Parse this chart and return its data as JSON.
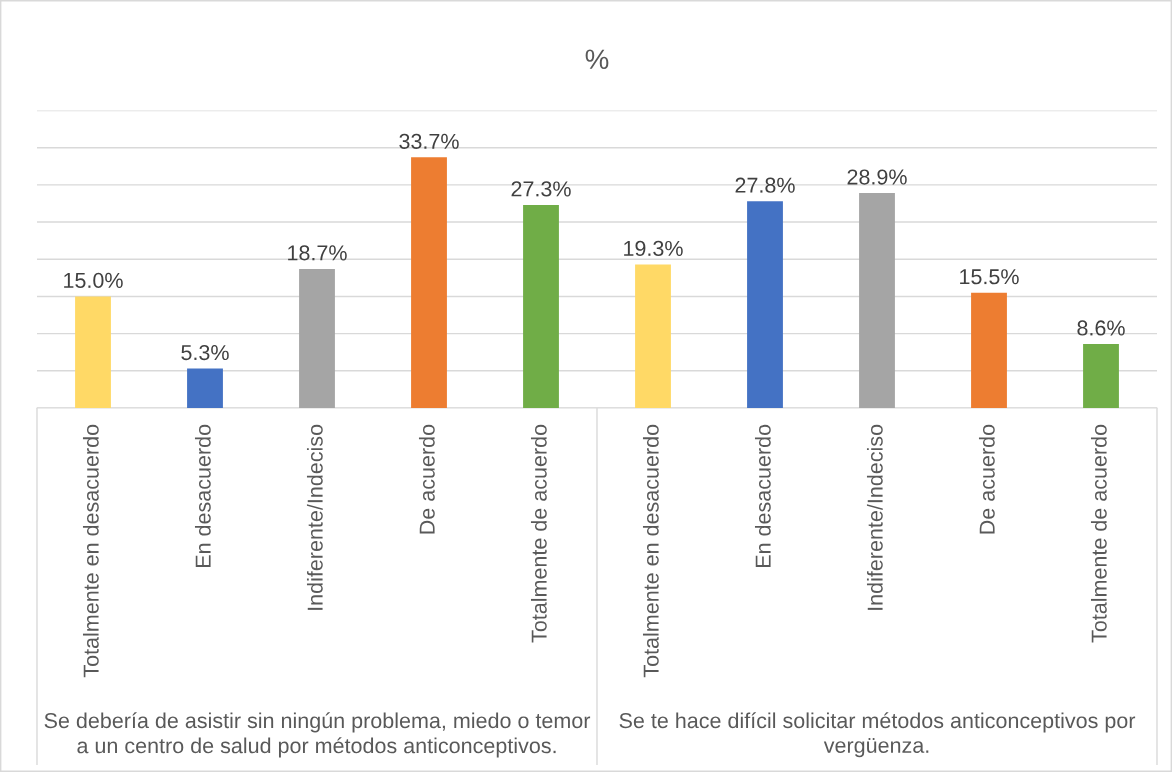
{
  "chart_data": {
    "type": "bar",
    "title": "%",
    "categories": [
      "Totalmente en desacuerdo",
      "En desacuerdo",
      "Indiferente/Indeciso",
      "De acuerdo",
      "Totalmente de acuerdo",
      "Totalmente en desacuerdo",
      "En desacuerdo",
      "Indiferente/Indeciso",
      "De acuerdo",
      "Totalmente de acuerdo"
    ],
    "values": [
      15.0,
      5.3,
      18.7,
      33.7,
      27.3,
      19.3,
      27.8,
      28.9,
      15.5,
      8.6
    ],
    "colors": [
      "#ffd966",
      "#4472c4",
      "#a5a5a5",
      "#ed7d31",
      "#70ad47",
      "#ffd966",
      "#4472c4",
      "#a5a5a5",
      "#ed7d31",
      "#70ad47"
    ],
    "value_labels": [
      "15.0%",
      "5.3%",
      "18.7%",
      "33.7%",
      "27.3%",
      "19.3%",
      "27.8%",
      "28.9%",
      "15.5%",
      "8.6%"
    ],
    "ylim": [
      0,
      40
    ],
    "yticks": [
      {
        "value": 0,
        "label": null
      },
      {
        "value": 5,
        "label": null
      },
      {
        "value": 10,
        "label": null
      },
      {
        "value": 15,
        "label": null
      },
      {
        "value": 20,
        "label": null
      },
      {
        "value": 25,
        "label": null
      },
      {
        "value": 30,
        "label": null
      },
      {
        "value": 35,
        "label": null
      },
      {
        "value": 40,
        "label": null
      }
    ],
    "grid": "y",
    "tick_labels": "x",
    "annotations": [
      "Se debería de asistir sin ningún problema, miedo o temor a un centro de salud por métodos anticonceptivos.",
      "Se te hace difícil solicitar métodos anticonceptivos por vergüenza."
    ]
  }
}
